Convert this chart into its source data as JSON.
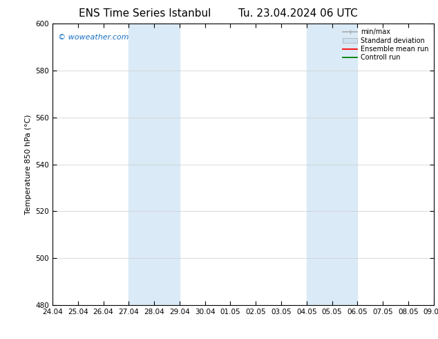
{
  "title_left": "ENS Time Series Istanbul",
  "title_right": "Tu. 23.04.2024 06 UTC",
  "ylabel": "Temperature 850 hPa (°C)",
  "ylim": [
    480,
    600
  ],
  "yticks": [
    480,
    500,
    520,
    540,
    560,
    580,
    600
  ],
  "xtick_labels": [
    "24.04",
    "25.04",
    "26.04",
    "27.04",
    "28.04",
    "29.04",
    "30.04",
    "01.05",
    "02.05",
    "03.05",
    "04.05",
    "05.05",
    "06.05",
    "07.05",
    "08.05",
    "09.05"
  ],
  "xlim_start": "2024-04-24",
  "xlim_end": "2024-05-09",
  "shaded_bands": [
    {
      "xstart": "2024-04-27",
      "xend": "2024-04-29"
    },
    {
      "xstart": "2024-05-04",
      "xend": "2024-05-06"
    }
  ],
  "shaded_color": "#daeaf6",
  "watermark": "© woweather.com",
  "watermark_color": "#1a6fc4",
  "bg_color": "#ffffff",
  "plot_bg_color": "#ffffff",
  "grid_color": "#cccccc",
  "title_fontsize": 11,
  "label_fontsize": 8,
  "tick_fontsize": 7.5
}
